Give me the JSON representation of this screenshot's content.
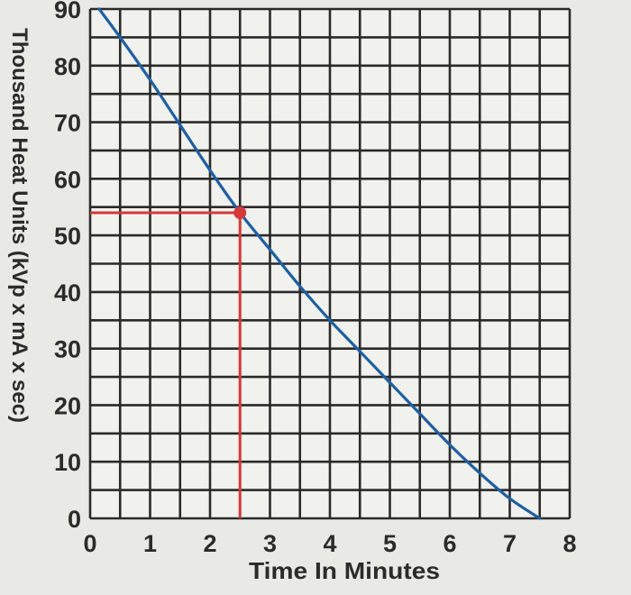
{
  "chart_data": {
    "type": "line",
    "title": "",
    "xlabel": "Time In Minutes",
    "ylabel": "Thousand Heat Units (kVp x mA x sec)",
    "xlim": [
      0,
      8
    ],
    "ylim": [
      0,
      90
    ],
    "x_ticks": [
      0,
      1,
      2,
      3,
      4,
      5,
      6,
      7,
      8
    ],
    "y_ticks": [
      0,
      10,
      20,
      30,
      40,
      50,
      60,
      70,
      80,
      90
    ],
    "grid": true,
    "series": [
      {
        "color": "#1d5fa3",
        "x": [
          0.15,
          0.5,
          1.0,
          1.5,
          2.0,
          2.5,
          3.0,
          3.5,
          4.0,
          4.5,
          5.0,
          5.5,
          6.0,
          6.5,
          7.0,
          7.5
        ],
        "y": [
          90,
          85,
          77.5,
          69.5,
          61.5,
          54,
          47.5,
          41,
          35,
          29.5,
          24,
          18.5,
          13,
          8,
          3.5,
          0
        ]
      }
    ],
    "annotation": {
      "color": "#d43a3a",
      "point": {
        "x": 2.5,
        "y": 54
      }
    }
  }
}
